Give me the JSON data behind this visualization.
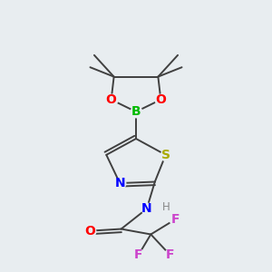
{
  "background_color": "#e8edf0",
  "bond_color": "#404040",
  "bond_lw": 1.4,
  "atoms": {
    "B": {
      "color": "#00bb00"
    },
    "O": {
      "color": "#ff0000"
    },
    "S": {
      "color": "#aaaa00"
    },
    "N": {
      "color": "#0000ff"
    },
    "F": {
      "color": "#cc44cc"
    },
    "H": {
      "color": "#888888"
    },
    "C": {
      "color": "#404040"
    }
  },
  "font_size": 10,
  "font_size_small": 8.5
}
